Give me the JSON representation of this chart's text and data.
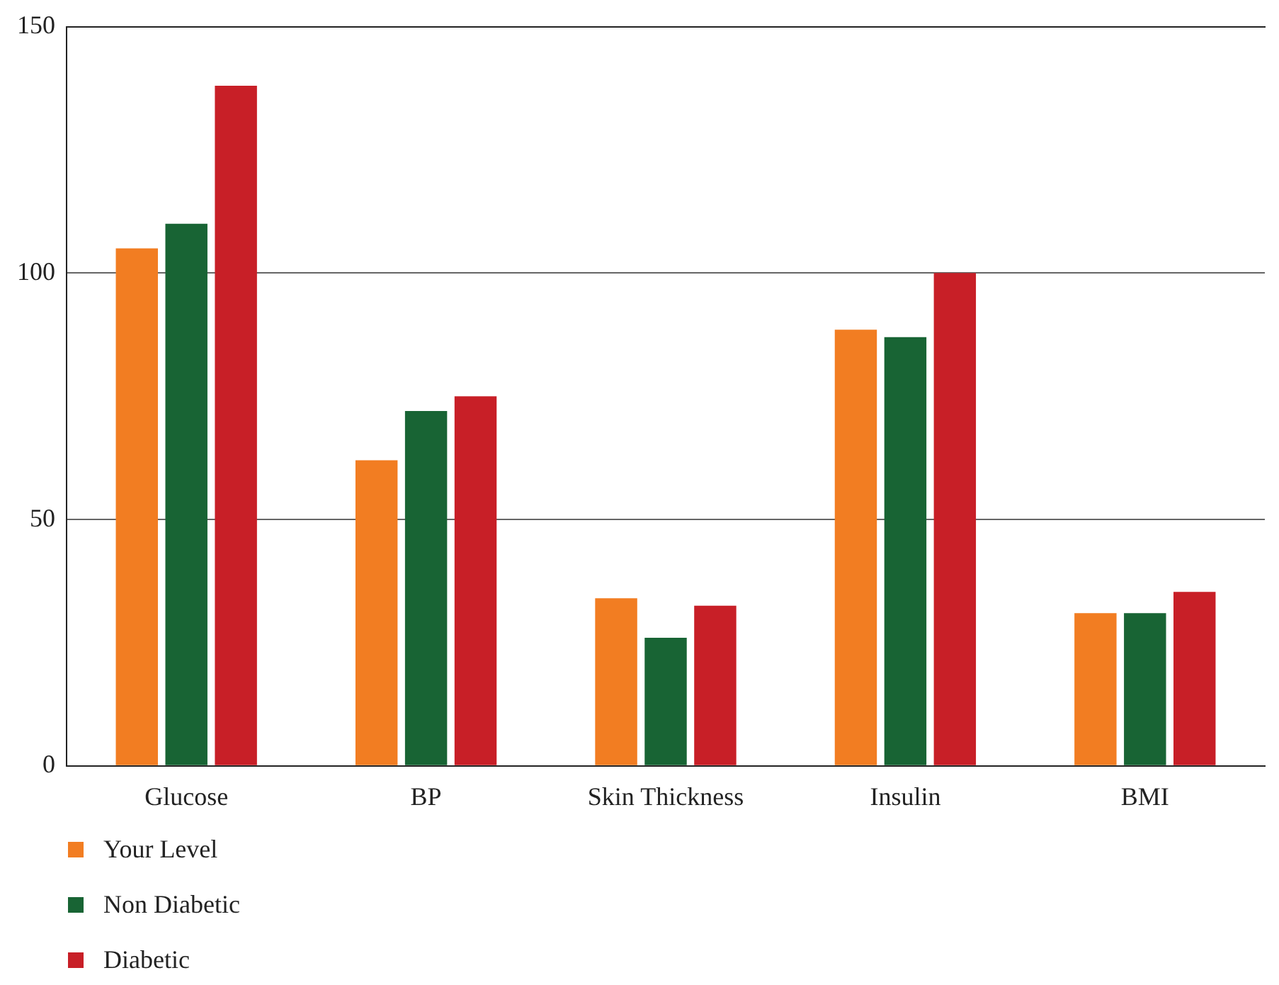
{
  "chart_data": {
    "type": "bar",
    "categories": [
      "Glucose",
      "BP",
      "Skin Thickness",
      "Insulin",
      "BMI"
    ],
    "series": [
      {
        "name": "Your Level",
        "color": "#f27d22",
        "values": [
          105,
          62,
          34,
          88.5,
          31
        ]
      },
      {
        "name": "Non Diabetic",
        "color": "#186434",
        "values": [
          110,
          72,
          26,
          87,
          31
        ]
      },
      {
        "name": "Diabetic",
        "color": "#c81f27",
        "values": [
          138,
          75,
          32.5,
          100,
          35.3
        ]
      }
    ],
    "ylim": [
      0,
      150
    ],
    "yticks": [
      0,
      50,
      100,
      150
    ],
    "grid": "y",
    "legend": "bottom left"
  }
}
